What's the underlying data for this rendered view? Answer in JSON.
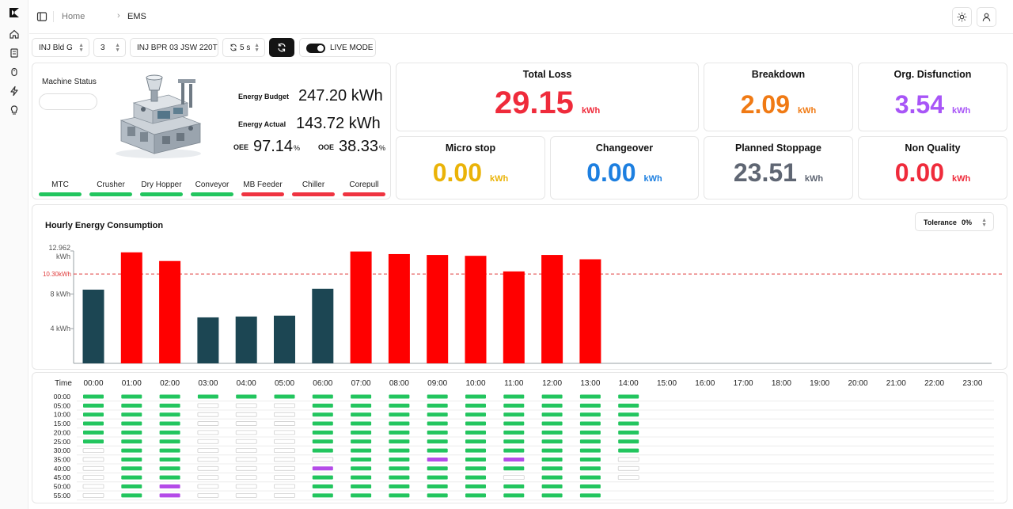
{
  "breadcrumb": {
    "home": "Home",
    "current": "EMS"
  },
  "toolbar": {
    "building": "INJ Bld G",
    "line": "3",
    "machine": "INJ BPR 03 JSW 220T",
    "interval": "5 s",
    "live_label": "LIVE MODE",
    "live_on": true
  },
  "machine": {
    "status_label": "Machine Status",
    "status_value": "",
    "energy_budget_label": "Energy Budget",
    "energy_budget_value": "247.20 kWh",
    "energy_actual_label": "Energy Actual",
    "energy_actual_value": "143.72 kWh",
    "oee1_label": "OEE",
    "oee1_value": "97.14",
    "oee1_unit": "%",
    "oee2_label": "OOE",
    "oee2_value": "38.33",
    "oee2_unit": "%",
    "components": [
      {
        "label": "MTC",
        "status": "ok"
      },
      {
        "label": "Crusher",
        "status": "ok"
      },
      {
        "label": "Dry Hopper",
        "status": "ok"
      },
      {
        "label": "Conveyor",
        "status": "ok"
      },
      {
        "label": "MB Feeder",
        "status": "fault"
      },
      {
        "label": "Chiller",
        "status": "fault"
      },
      {
        "label": "Corepull",
        "status": "fault"
      }
    ]
  },
  "kpis": {
    "total_loss": {
      "title": "Total Loss",
      "value": "29.15",
      "unit": "kWh",
      "color": "#ef2b3b"
    },
    "breakdown": {
      "title": "Breakdown",
      "value": "2.09",
      "unit": "kWh",
      "color": "#f07a14"
    },
    "org_disfunction": {
      "title": "Org. Disfunction",
      "value": "3.54",
      "unit": "kWh",
      "color": "#a855f7"
    },
    "micro_stop": {
      "title": "Micro stop",
      "value": "0.00",
      "unit": "kWh",
      "color": "#eab308"
    },
    "changeover": {
      "title": "Changeover",
      "value": "0.00",
      "unit": "kWh",
      "color": "#1d7fe0"
    },
    "planned_stoppage": {
      "title": "Planned Stoppage",
      "value": "23.51",
      "unit": "kWh",
      "color": "#5f6673"
    },
    "non_quality": {
      "title": "Non Quality",
      "value": "0.00",
      "unit": "kWh",
      "color": "#ef2b3b"
    }
  },
  "colors": {
    "ok": "#22c55e",
    "fault": "#ef3340",
    "bar_over": "#ff0000",
    "bar_under": "#1c4653",
    "idle_stroke": "#cfcfcf",
    "purple": "#b44be8"
  },
  "chart_data": {
    "type": "bar",
    "title": "Hourly Energy Consumption",
    "tolerance_label": "Tolerance",
    "tolerance_value": "0%",
    "ylim": [
      0,
      12.962
    ],
    "y_ticks": [
      {
        "value": 4,
        "label": "4 kWh"
      },
      {
        "value": 8,
        "label": "8 kWh"
      },
      {
        "value": 12.962,
        "label": "12.962 kWh"
      }
    ],
    "threshold": {
      "value": 10.3,
      "label": "10.30kWh"
    },
    "categories": [
      "00:00",
      "01:00",
      "02:00",
      "03:00",
      "04:00",
      "05:00",
      "06:00",
      "07:00",
      "08:00",
      "09:00",
      "10:00",
      "11:00",
      "12:00",
      "13:00",
      "14:00",
      "15:00",
      "16:00",
      "17:00",
      "18:00",
      "19:00",
      "20:00",
      "21:00",
      "22:00",
      "23:00"
    ],
    "values": [
      8.5,
      12.8,
      11.8,
      5.3,
      5.4,
      5.5,
      8.6,
      12.9,
      12.6,
      12.5,
      12.4,
      10.6,
      12.5,
      12.0,
      null,
      null,
      null,
      null,
      null,
      null,
      null,
      null,
      null,
      null
    ]
  },
  "timeline": {
    "time_label": "Time",
    "hours": [
      "00:00",
      "01:00",
      "02:00",
      "03:00",
      "04:00",
      "05:00",
      "06:00",
      "07:00",
      "08:00",
      "09:00",
      "10:00",
      "11:00",
      "12:00",
      "13:00",
      "14:00",
      "15:00",
      "16:00",
      "17:00",
      "18:00",
      "19:00",
      "20:00",
      "21:00",
      "22:00",
      "23:00"
    ],
    "minutes": [
      "00:00",
      "05:00",
      "10:00",
      "15:00",
      "20:00",
      "25:00",
      "30:00",
      "35:00",
      "40:00",
      "45:00",
      "50:00",
      "55:00"
    ],
    "grid": [
      [
        "g",
        "g",
        "g",
        "g",
        "g",
        "g",
        "g",
        "g",
        "g",
        "g",
        "g",
        "g",
        "g",
        "g",
        "g"
      ],
      [
        "g",
        "g",
        "g",
        "e",
        "e",
        "e",
        "g",
        "g",
        "g",
        "g",
        "g",
        "g",
        "g",
        "g",
        "g"
      ],
      [
        "g",
        "g",
        "g",
        "e",
        "e",
        "e",
        "g",
        "g",
        "g",
        "g",
        "g",
        "g",
        "g",
        "g",
        "g"
      ],
      [
        "g",
        "g",
        "g",
        "e",
        "e",
        "e",
        "g",
        "g",
        "g",
        "g",
        "g",
        "g",
        "g",
        "g",
        "g"
      ],
      [
        "g",
        "g",
        "g",
        "e",
        "e",
        "e",
        "g",
        "g",
        "g",
        "g",
        "g",
        "g",
        "g",
        "g",
        "g"
      ],
      [
        "g",
        "g",
        "g",
        "e",
        "e",
        "e",
        "g",
        "g",
        "g",
        "g",
        "g",
        "g",
        "g",
        "g",
        "g"
      ],
      [
        "e",
        "g",
        "g",
        "e",
        "e",
        "e",
        "g",
        "g",
        "g",
        "g",
        "g",
        "g",
        "g",
        "g",
        "g"
      ],
      [
        "e",
        "g",
        "g",
        "e",
        "e",
        "e",
        "e",
        "g",
        "g",
        "p",
        "g",
        "p",
        "g",
        "g",
        "e"
      ],
      [
        "e",
        "g",
        "g",
        "e",
        "e",
        "e",
        "p",
        "g",
        "g",
        "g",
        "g",
        "g",
        "g",
        "g",
        "e"
      ],
      [
        "e",
        "g",
        "g",
        "e",
        "e",
        "e",
        "g",
        "g",
        "g",
        "g",
        "g",
        "e",
        "g",
        "g",
        "e"
      ],
      [
        "e",
        "g",
        "p",
        "e",
        "e",
        "e",
        "g",
        "g",
        "g",
        "g",
        "g",
        "g",
        "g",
        "g",
        ""
      ],
      [
        "e",
        "g",
        "p",
        "e",
        "e",
        "e",
        "g",
        "g",
        "g",
        "g",
        "g",
        "g",
        "g",
        "g",
        ""
      ]
    ]
  }
}
